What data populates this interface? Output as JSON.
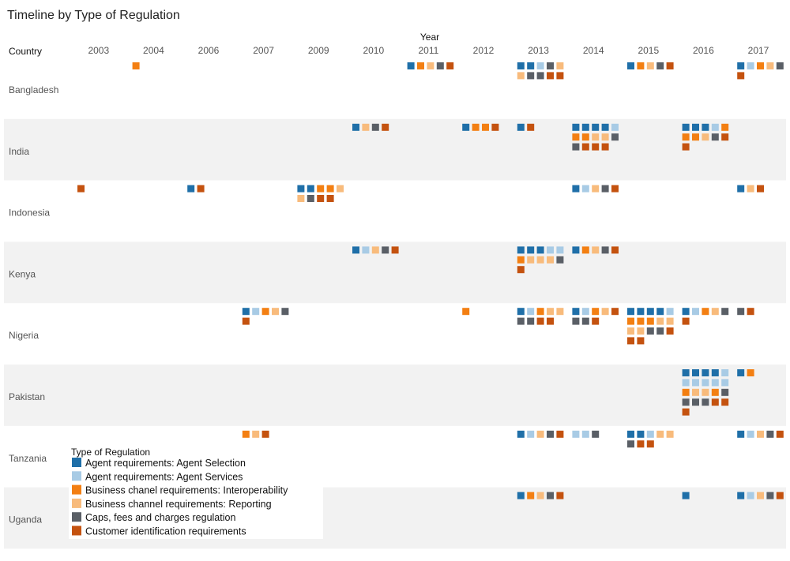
{
  "chart_data": {
    "type": "timeline",
    "title": "Timeline by Type of Regulation",
    "column_header": "Year",
    "row_header": "Country",
    "years": [
      "2003",
      "2004",
      "2006",
      "2007",
      "2009",
      "2010",
      "2011",
      "2012",
      "2013",
      "2014",
      "2015",
      "2016",
      "2017"
    ],
    "countries": [
      "Bangladesh",
      "India",
      "Indonesia",
      "Kenya",
      "Nigeria",
      "Pakistan",
      "Tanzania",
      "Uganda"
    ],
    "legend_title": "Type of Regulation",
    "types": [
      {
        "key": "AS",
        "label": "Agent requirements: Agent Selection",
        "color": "#1f6fa8"
      },
      {
        "key": "AV",
        "label": "Agent requirements: Agent Services",
        "color": "#a8cbe5"
      },
      {
        "key": "IO",
        "label": "Business chanel requirements: Interoperability",
        "color": "#f37f12"
      },
      {
        "key": "RP",
        "label": "Business channel requirements: Reporting",
        "color": "#f8bb7c"
      },
      {
        "key": "CF",
        "label": "Caps, fees and charges regulation",
        "color": "#5a5f66"
      },
      {
        "key": "CI",
        "label": "Customer identification requirements",
        "color": "#c4520f"
      }
    ],
    "cells": {
      "Bangladesh": {
        "2004": [
          [
            "IO"
          ]
        ],
        "2011": [
          [
            "AS",
            "IO",
            "RP",
            "CF",
            "CI"
          ]
        ],
        "2013": [
          [
            "AS",
            "AS",
            "AV",
            "CF",
            "RP"
          ],
          [
            "RP",
            "CF",
            "CF",
            "CI",
            "CI"
          ]
        ],
        "2015": [
          [
            "AS",
            "IO",
            "RP",
            "CF",
            "CI"
          ]
        ],
        "2017": [
          [
            "AS",
            "AV",
            "IO",
            "RP",
            "CF"
          ],
          [
            "CI"
          ]
        ]
      },
      "India": {
        "2010": [
          [
            "AS",
            "RP",
            "CF",
            "CI"
          ]
        ],
        "2012": [
          [
            "AS",
            "IO",
            "IO",
            "CI"
          ]
        ],
        "2013": [
          [
            "AS",
            "CI"
          ]
        ],
        "2014": [
          [
            "AS",
            "AS",
            "AS",
            "AS",
            "AV"
          ],
          [
            "IO",
            "IO",
            "RP",
            "RP",
            "CF"
          ],
          [
            "CF",
            "CI",
            "CI",
            "CI"
          ]
        ],
        "2016": [
          [
            "AS",
            "AS",
            "AS",
            "AV",
            "IO"
          ],
          [
            "IO",
            "IO",
            "RP",
            "CF",
            "CI"
          ],
          [
            "CI"
          ]
        ]
      },
      "Indonesia": {
        "2003": [
          [
            "CI"
          ]
        ],
        "2006": [
          [
            "AS",
            "CI"
          ]
        ],
        "2009": [
          [
            "AS",
            "AS",
            "IO",
            "IO",
            "RP"
          ],
          [
            "RP",
            "CF",
            "CI",
            "CI"
          ]
        ],
        "2014": [
          [
            "AS",
            "AV",
            "RP",
            "CF",
            "CI"
          ]
        ],
        "2017": [
          [
            "AS",
            "RP",
            "CI"
          ]
        ]
      },
      "Kenya": {
        "2010": [
          [
            "AS",
            "AV",
            "RP",
            "CF",
            "CI"
          ]
        ],
        "2013": [
          [
            "AS",
            "AS",
            "AS",
            "AV",
            "AV"
          ],
          [
            "IO",
            "RP",
            "RP",
            "RP",
            "CF"
          ],
          [
            "CI"
          ]
        ],
        "2014": [
          [
            "AS",
            "IO",
            "RP",
            "CF",
            "CI"
          ]
        ]
      },
      "Nigeria": {
        "2007": [
          [
            "AS",
            "AV",
            "IO",
            "RP",
            "CF"
          ],
          [
            "CI"
          ]
        ],
        "2012": [
          [
            "IO"
          ]
        ],
        "2013": [
          [
            "AS",
            "AV",
            "IO",
            "RP",
            "RP"
          ],
          [
            "CF",
            "CF",
            "CI",
            "CI"
          ]
        ],
        "2014": [
          [
            "AS",
            "AV",
            "IO",
            "RP",
            "CI"
          ],
          [
            "CF",
            "CF",
            "CI"
          ]
        ],
        "2015": [
          [
            "AS",
            "AS",
            "AS",
            "AS",
            "AV"
          ],
          [
            "IO",
            "IO",
            "IO",
            "RP",
            "RP"
          ],
          [
            "RP",
            "RP",
            "CF",
            "CF",
            "CI"
          ],
          [
            "CI",
            "CI"
          ]
        ],
        "2016": [
          [
            "AS",
            "AV",
            "IO",
            "RP",
            "CF"
          ],
          [
            "CI"
          ]
        ],
        "2017": [
          [
            "CF",
            "CI"
          ]
        ]
      },
      "Pakistan": {
        "2016": [
          [
            "AS",
            "AS",
            "AS",
            "AS",
            "AV"
          ],
          [
            "AV",
            "AV",
            "AV",
            "AV",
            "AV"
          ],
          [
            "IO",
            "RP",
            "RP",
            "IO",
            "CF"
          ],
          [
            "CF",
            "CF",
            "CF",
            "CI",
            "CI"
          ],
          [
            "CI"
          ]
        ],
        "2017": [
          [
            "AS",
            "IO"
          ]
        ]
      },
      "Tanzania": {
        "2007": [
          [
            "IO",
            "RP",
            "CI"
          ]
        ],
        "2013": [
          [
            "AS",
            "AV",
            "RP",
            "CF",
            "CI"
          ]
        ],
        "2014": [
          [
            "AV",
            "AV",
            "CF"
          ]
        ],
        "2015": [
          [
            "AS",
            "AS",
            "AV",
            "RP",
            "RP"
          ],
          [
            "CF",
            "CI",
            "CI"
          ]
        ],
        "2017": [
          [
            "AS",
            "AV",
            "RP",
            "CF",
            "CI"
          ]
        ]
      },
      "Uganda": {
        "2013": [
          [
            "AS",
            "IO",
            "RP",
            "CF",
            "CI"
          ]
        ],
        "2016": [
          [
            "AS"
          ]
        ],
        "2017": [
          [
            "AS",
            "AV",
            "RP",
            "CF",
            "CI"
          ]
        ]
      }
    }
  }
}
